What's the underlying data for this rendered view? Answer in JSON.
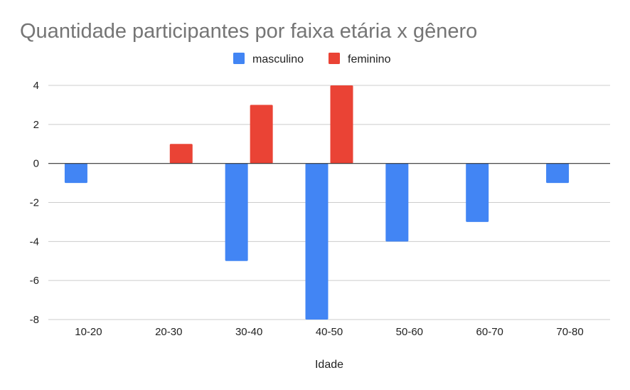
{
  "chart_data": {
    "type": "bar",
    "title": "Quantidade participantes por faixa etária x gênero",
    "xlabel": "Idade",
    "ylabel": "",
    "categories": [
      "10-20",
      "20-30",
      "30-40",
      "40-50",
      "50-60",
      "60-70",
      "70-80"
    ],
    "series": [
      {
        "name": "masculino",
        "color": "#4285f4",
        "values": [
          -1,
          0,
          -5,
          -8,
          -4,
          -3,
          -1
        ]
      },
      {
        "name": "feminino",
        "color": "#ea4335",
        "values": [
          0,
          1,
          3,
          4,
          0,
          0,
          0
        ]
      }
    ],
    "ylim": [
      -8,
      4
    ],
    "yticks": [
      4,
      2,
      0,
      -2,
      -4,
      -6,
      -8
    ],
    "ytick_labels": [
      "4",
      "2",
      "0",
      "-2",
      "-4",
      "-6",
      "-8"
    ],
    "grid": true,
    "legend_position": "top-center"
  }
}
